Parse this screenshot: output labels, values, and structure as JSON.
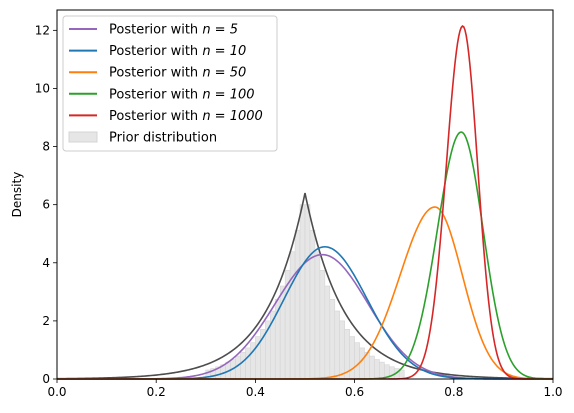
{
  "chart_data": {
    "type": "line",
    "title": "",
    "xlabel": "",
    "ylabel": "Density",
    "xlim": [
      0.0,
      1.0
    ],
    "ylim": [
      0,
      12.7
    ],
    "xticks": [
      0.0,
      0.2,
      0.4,
      0.6,
      0.8,
      1.0
    ],
    "xtick_labels": [
      "0.0",
      "0.2",
      "0.4",
      "0.6",
      "0.8",
      "1.0"
    ],
    "yticks": [
      0,
      2,
      4,
      6,
      8,
      10,
      12
    ],
    "ytick_labels": [
      "0",
      "2",
      "4",
      "6",
      "8",
      "10",
      "12"
    ],
    "grid": false,
    "legend_position": "top-left",
    "series": [
      {
        "name": "Posterior with ",
        "name_math": "n = 5",
        "color": "#9467bd",
        "kind": "line",
        "curve": {
          "shape": "gauss",
          "mu": 0.535,
          "sigma_left": 0.095,
          "sigma_right": 0.092,
          "peak": 4.28
        }
      },
      {
        "name": "Posterior with ",
        "name_math": "n = 10",
        "color": "#1f77b4",
        "kind": "line",
        "curve": {
          "shape": "gauss",
          "mu": 0.54,
          "sigma_left": 0.082,
          "sigma_right": 0.085,
          "peak": 4.55
        }
      },
      {
        "name": "Posterior with ",
        "name_math": "n = 50",
        "color": "#ff7f0e",
        "kind": "line",
        "curve": {
          "shape": "gauss",
          "mu": 0.762,
          "sigma_left": 0.07,
          "sigma_right": 0.055,
          "peak": 5.92
        }
      },
      {
        "name": "Posterior with ",
        "name_math": "n = 100",
        "color": "#2ca02c",
        "kind": "line",
        "curve": {
          "shape": "gauss",
          "mu": 0.815,
          "sigma_left": 0.048,
          "sigma_right": 0.044,
          "peak": 8.5
        }
      },
      {
        "name": "Posterior with ",
        "name_math": "n = 1000",
        "color": "#d62728",
        "kind": "line",
        "curve": {
          "shape": "gauss",
          "mu": 0.818,
          "sigma_left": 0.033,
          "sigma_right": 0.03,
          "peak": 12.15
        }
      },
      {
        "name": "Prior distribution",
        "name_math": "",
        "color": "#d9d9d9",
        "kind": "histogram",
        "bins": {
          "start": 0.3,
          "width": 0.01,
          "values": [
            0.31,
            0.36,
            0.42,
            0.49,
            0.58,
            0.67,
            0.79,
            0.92,
            1.07,
            1.25,
            1.46,
            1.71,
            2.0,
            2.34,
            2.74,
            3.2,
            3.74,
            4.38,
            5.12,
            6.0,
            6.0,
            5.12,
            4.38,
            3.74,
            3.2,
            2.74,
            2.34,
            2.0,
            1.71,
            1.46,
            1.25,
            1.07,
            0.92,
            0.79,
            0.67,
            0.58,
            0.49,
            0.42,
            0.36,
            0.31
          ]
        }
      }
    ],
    "overlay_curve": {
      "color": "#4d4d4d",
      "curve": {
        "shape": "laplace",
        "mu": 0.5,
        "peak": 6.4,
        "b": 0.078
      }
    }
  }
}
